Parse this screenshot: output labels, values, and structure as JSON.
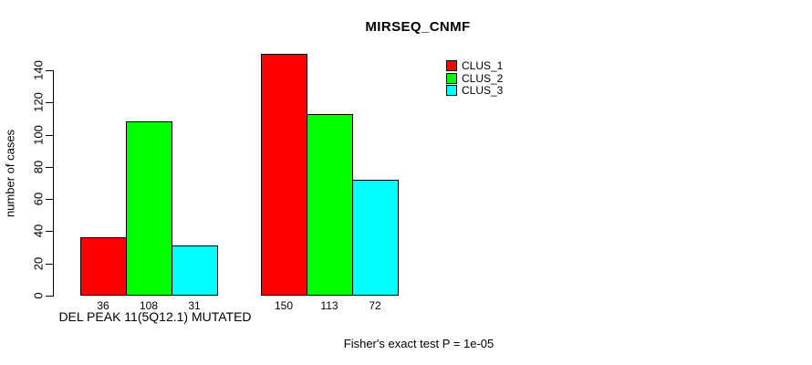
{
  "title": "MIRSEQ_CNMF",
  "footer": "Fisher's exact test P = 1e-05",
  "legend": {
    "items": [
      {
        "label": "CLUS_1",
        "color": "#ff0000"
      },
      {
        "label": "CLUS_2",
        "color": "#00ff00"
      },
      {
        "label": "CLUS_3",
        "color": "#00ffff"
      }
    ]
  },
  "chart_data": {
    "type": "bar",
    "title": "MIRSEQ_CNMF",
    "categories": [
      "DEL PEAK 11(5Q12.1) MUTATED",
      ""
    ],
    "series": [
      {
        "name": "CLUS_1",
        "color": "#ff0000",
        "values": [
          36,
          150
        ]
      },
      {
        "name": "CLUS_2",
        "color": "#00ff00",
        "values": [
          108,
          113
        ]
      },
      {
        "name": "CLUS_3",
        "color": "#00ffff",
        "values": [
          31,
          72
        ]
      }
    ],
    "xlabel": "DEL PEAK 11(5Q12.1) MUTATED",
    "ylabel": "number of cases",
    "yticks": [
      0,
      20,
      40,
      60,
      80,
      100,
      120,
      140
    ],
    "ylim": [
      0,
      150
    ],
    "bar_value_labels_shown": true,
    "annotation": "Fisher's exact test P = 1e-05",
    "legend_position": "top-right",
    "grid": false
  }
}
